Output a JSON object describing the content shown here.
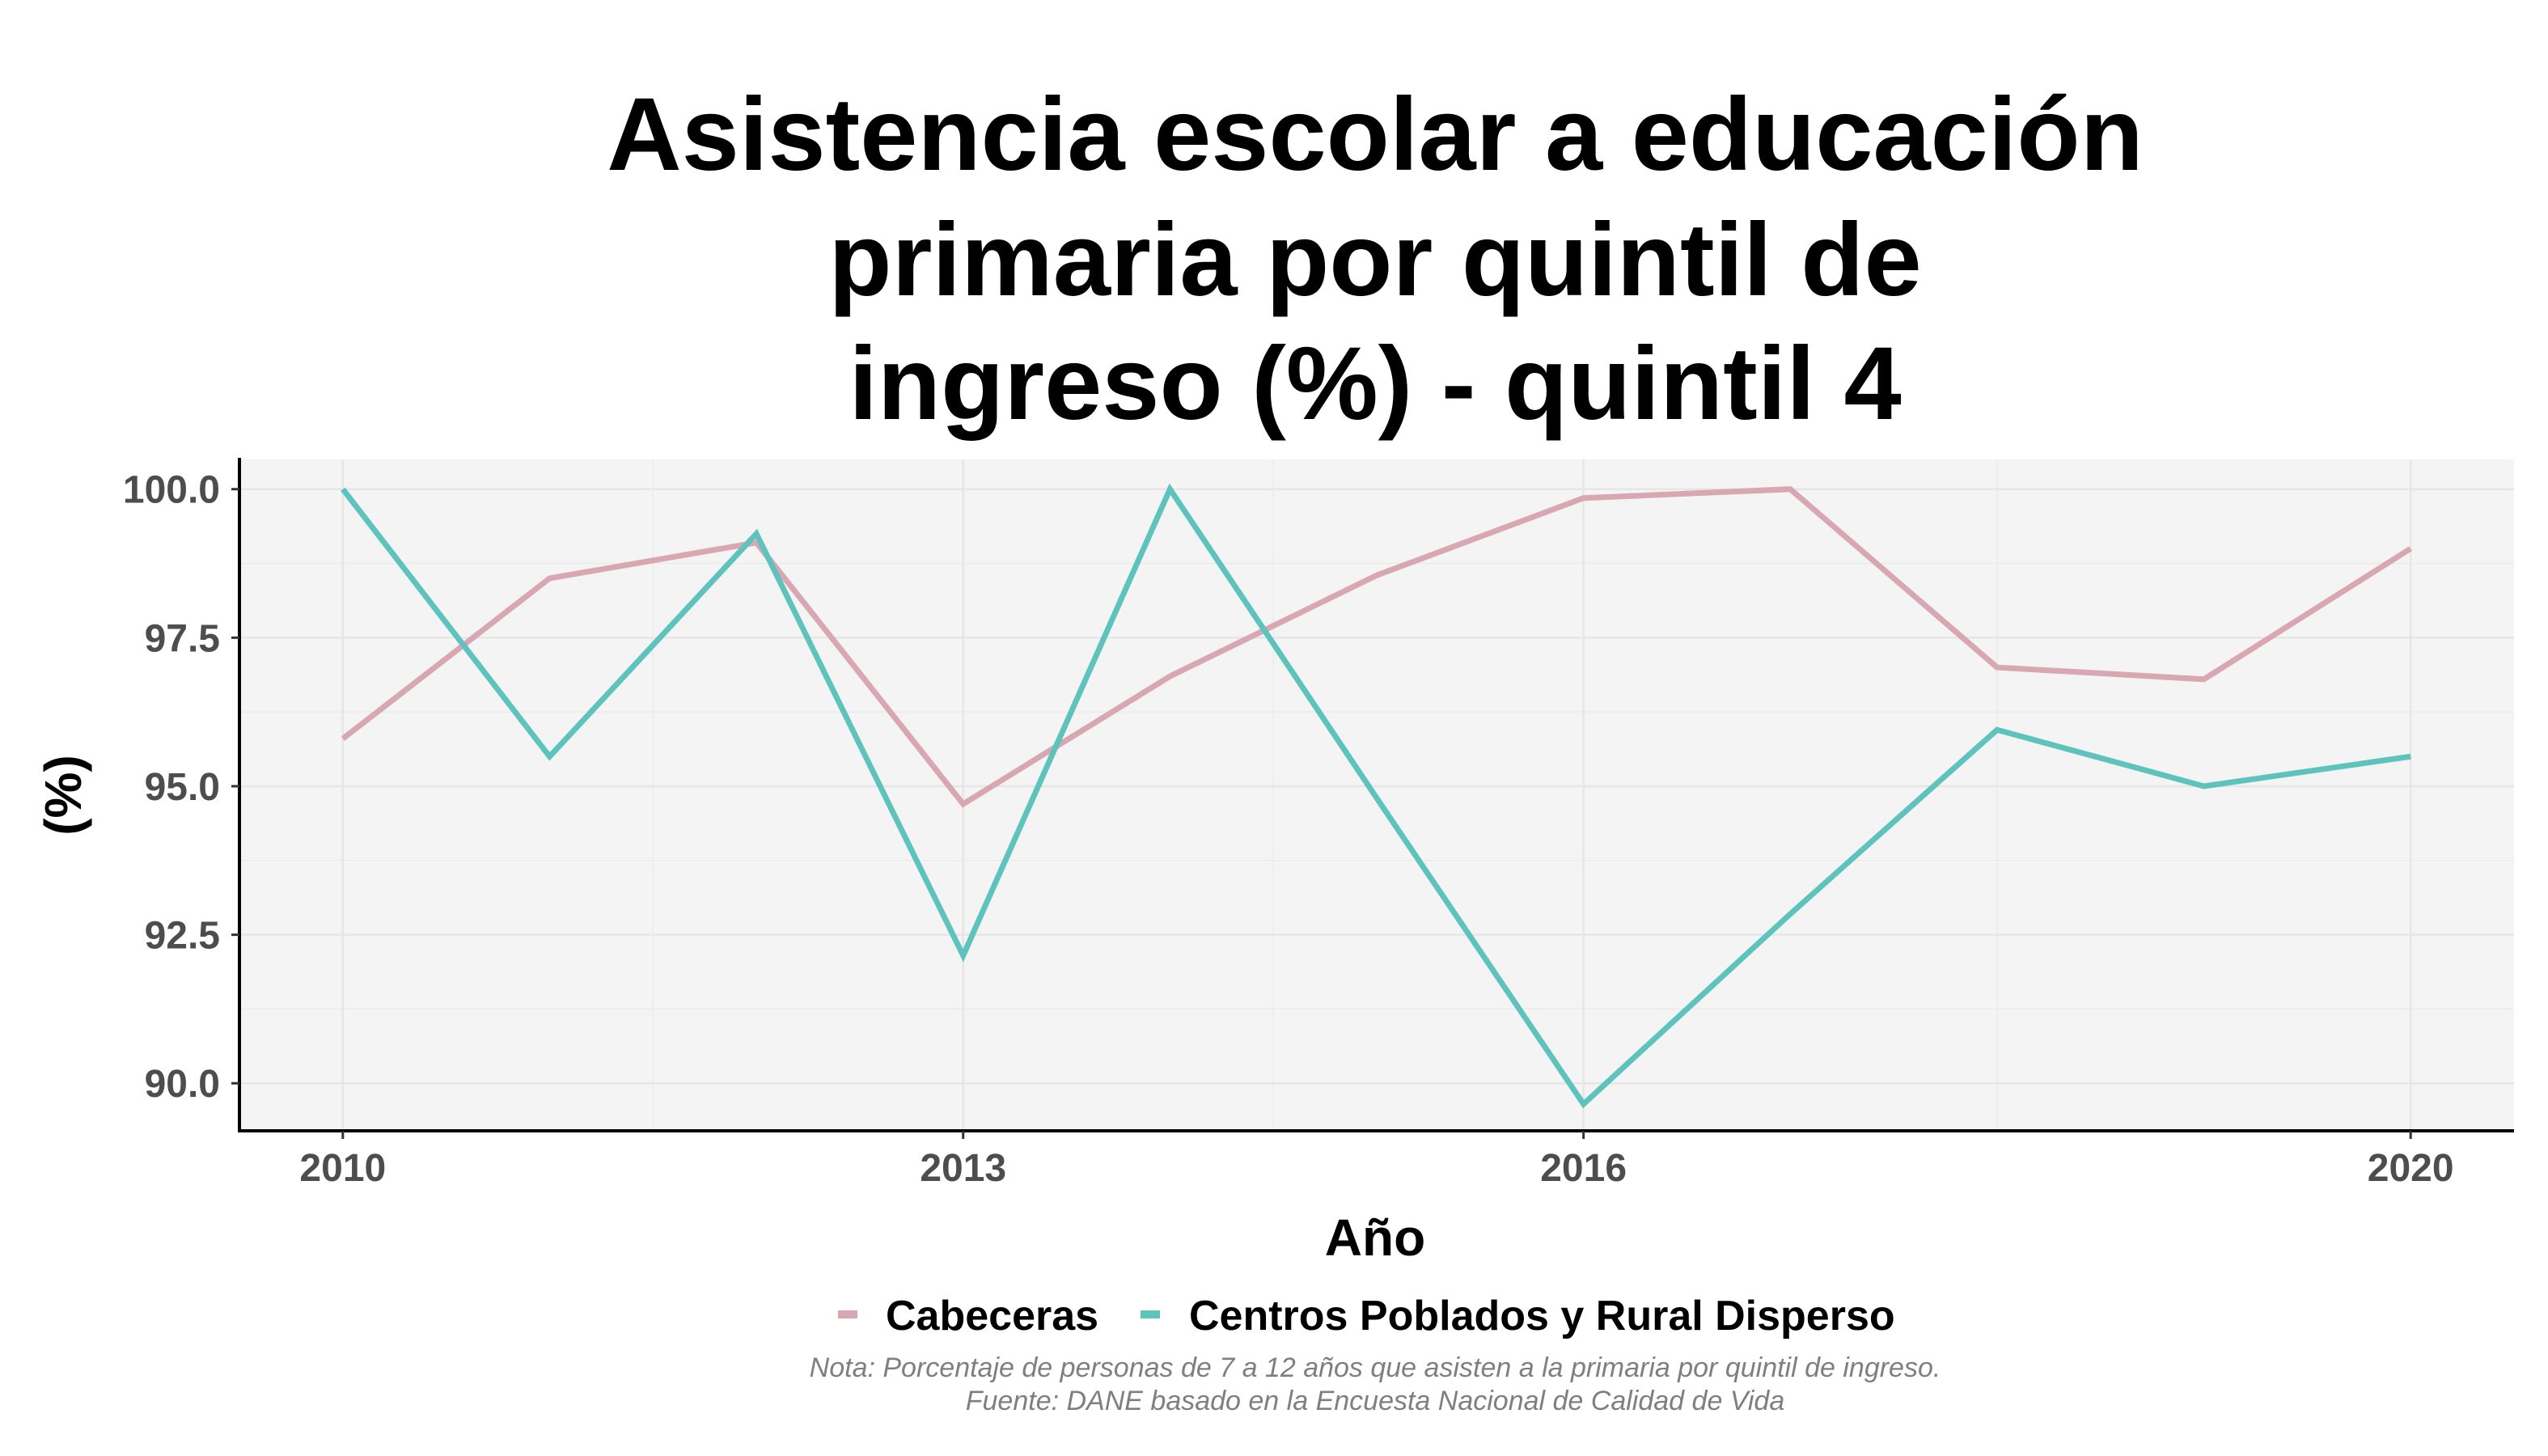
{
  "chart_data": {
    "type": "line",
    "title_lines": [
      "Asistencia escolar a educación",
      "primaria por quintil de",
      "ingreso (%) - quintil 4"
    ],
    "xlabel": "Año",
    "ylabel": "(%)",
    "x": [
      2010,
      2011,
      2012,
      2013,
      2014,
      2015,
      2016,
      2017,
      2018,
      2019,
      2020
    ],
    "xticks": [
      2010,
      2013,
      2016,
      2020
    ],
    "xtick_labels": [
      "2010",
      "2013",
      "2016",
      "2020"
    ],
    "yticks": [
      90.0,
      92.5,
      95.0,
      97.5,
      100.0
    ],
    "ytick_labels": [
      "90.0",
      "92.5",
      "95.0",
      "97.5",
      "100.0"
    ],
    "xlim": [
      2009.5,
      2020.5
    ],
    "ylim": [
      89.2,
      100.5
    ],
    "grid": true,
    "legend_position": "bottom",
    "series": [
      {
        "name": "Cabeceras",
        "color": "#d8a7b1",
        "values": [
          95.8,
          98.5,
          99.1,
          94.7,
          96.85,
          98.55,
          99.85,
          100.0,
          97.0,
          96.8,
          99.0
        ]
      },
      {
        "name": "Centros Poblados y Rural Disperso",
        "color": "#5fc3bd",
        "values": [
          100.0,
          95.5,
          99.25,
          92.15,
          100.0,
          94.8,
          89.65,
          92.85,
          95.95,
          95.0,
          95.5
        ]
      }
    ],
    "caption_lines": [
      "Nota: Porcentaje de personas de 7 a 12 años que asisten a la primaria por quintil de ingreso.",
      "Fuente: DANE basado en la Encuesta Nacional de Calidad de Vida"
    ],
    "panel_color": "#f4f4f4"
  }
}
